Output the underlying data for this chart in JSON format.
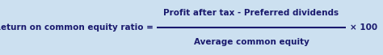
{
  "bg_color": "#cce0f0",
  "text_color": "#1a1a6e",
  "left_label": "Return on common equity ratio =",
  "numerator": "Profit after tax - Preferred dividends",
  "denominator": "Average common equity",
  "multiplier": "× 100",
  "fig_width": 4.74,
  "fig_height": 0.68,
  "dpi": 100,
  "font_size": 7.5
}
